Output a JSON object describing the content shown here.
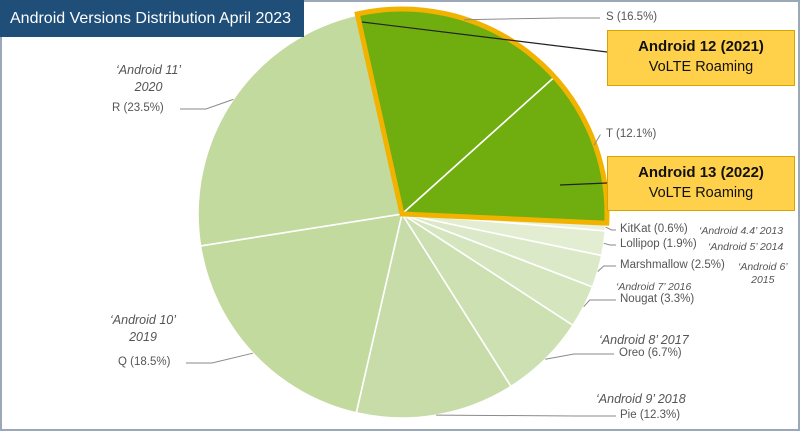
{
  "title": "Android Versions Distribution April 2023",
  "colors": {
    "title_bg": "#1f4e79",
    "highlight_fill": "#6fae0e",
    "highlight_border": "#f2b200",
    "callout_fill": "#ffd04a"
  },
  "chart_data": {
    "type": "pie",
    "title": "Android Versions Distribution April 2023",
    "slices": [
      {
        "label": "S (16.5%)",
        "name": "S",
        "value": 16.5,
        "color": "#6fae0e",
        "highlight": true
      },
      {
        "label": "T (12.1%)",
        "name": "T",
        "value": 12.1,
        "color": "#6fae0e",
        "highlight": true
      },
      {
        "label": "KitKat (0.6%)",
        "name": "KitKat",
        "value": 0.6,
        "color": "#e9f1dc"
      },
      {
        "label": "Lollipop (1.9%)",
        "name": "Lollipop",
        "value": 1.9,
        "color": "#e3edd2"
      },
      {
        "label": "Marshmallow (2.5%)",
        "name": "Marshmallow",
        "value": 2.5,
        "color": "#dce9c8"
      },
      {
        "label": "Nougat (3.3%)",
        "name": "Nougat",
        "value": 3.3,
        "color": "#d5e5bd"
      },
      {
        "label": "Oreo (6.7%)",
        "name": "Oreo",
        "value": 6.7,
        "color": "#cde0b1"
      },
      {
        "label": "Pie (12.3%)",
        "name": "Pie",
        "value": 12.3,
        "color": "#c7dca8"
      },
      {
        "label": "Q (18.5%)",
        "name": "Q",
        "value": 18.5,
        "color": "#c3da9f"
      },
      {
        "label": "R (23.5%)",
        "name": "R",
        "value": 23.5,
        "color": "#c3da9f"
      }
    ]
  },
  "annotations": {
    "android11": "‘Android 11’",
    "android11_year": "2020",
    "android10": "‘Android 10’",
    "android10_year": "2019",
    "android9": "‘Android 9’ 2018",
    "android8": "‘Android 8’ 2017",
    "android7": "‘Android 7’ 2016",
    "android6": "‘Android 6’",
    "android6_year": "2015",
    "android5": "‘Android 5’ 2014",
    "android44": "‘Android 4.4’ 2013"
  },
  "callouts": {
    "android12_title": "Android 12 (2021)",
    "android12_sub": "VoLTE Roaming",
    "android13_title": "Android 13 (2022)",
    "android13_sub": "VoLTE Roaming"
  }
}
